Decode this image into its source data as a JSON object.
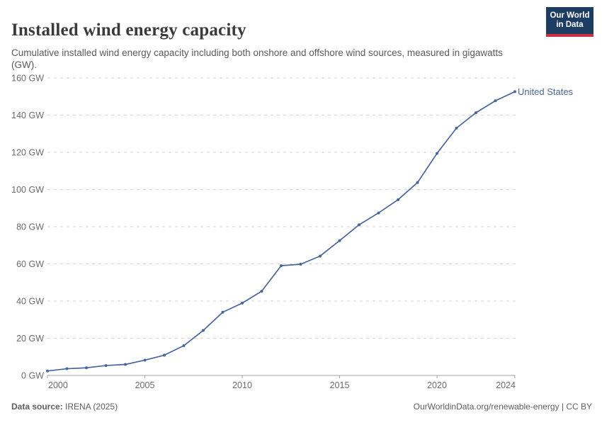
{
  "header": {
    "title": "Installed wind energy capacity",
    "subtitle": "Cumulative installed wind energy capacity including both onshore and offshore wind sources, measured in gigawatts (GW)."
  },
  "logo": {
    "line1": "Our World",
    "line2": "in Data",
    "bg_color": "#1d3d63",
    "stripe_color": "#cf2d41"
  },
  "footer": {
    "source_label": "Data source:",
    "source_value": "IRENA (2025)",
    "link": "OurWorldinData.org/renewable-energy",
    "separator": "|",
    "license": "CC BY"
  },
  "chart_data": {
    "type": "line",
    "title": "Installed wind energy capacity",
    "xlabel": "",
    "ylabel": "",
    "unit": "GW",
    "xlim": [
      2000,
      2024
    ],
    "ylim": [
      0,
      160
    ],
    "yticks": [
      0,
      20,
      40,
      60,
      80,
      100,
      120,
      140,
      160
    ],
    "ytick_suffix": " GW",
    "xticks": [
      2000,
      2005,
      2010,
      2015,
      2020,
      2024
    ],
    "grid": "horizontal-dashed",
    "grid_color": "#d6d6d6",
    "axis_color": "#a3a3a3",
    "tick_label_color": "#6b6b6b",
    "legend_position": "end-of-line-label",
    "x": [
      2000,
      2001,
      2002,
      2003,
      2004,
      2005,
      2006,
      2007,
      2008,
      2009,
      2010,
      2011,
      2012,
      2013,
      2014,
      2015,
      2016,
      2017,
      2018,
      2019,
      2020,
      2021,
      2022,
      2023,
      2024
    ],
    "series": [
      {
        "name": "United States",
        "color": "#4766a0",
        "values": [
          2.4,
          3.6,
          4.1,
          5.3,
          5.9,
          8.2,
          10.9,
          16.0,
          24.2,
          34.0,
          38.9,
          45.3,
          59.0,
          59.8,
          64.2,
          72.5,
          81.0,
          87.4,
          94.5,
          103.7,
          119.4,
          133.0,
          141.3,
          147.7,
          152.6
        ]
      }
    ]
  }
}
